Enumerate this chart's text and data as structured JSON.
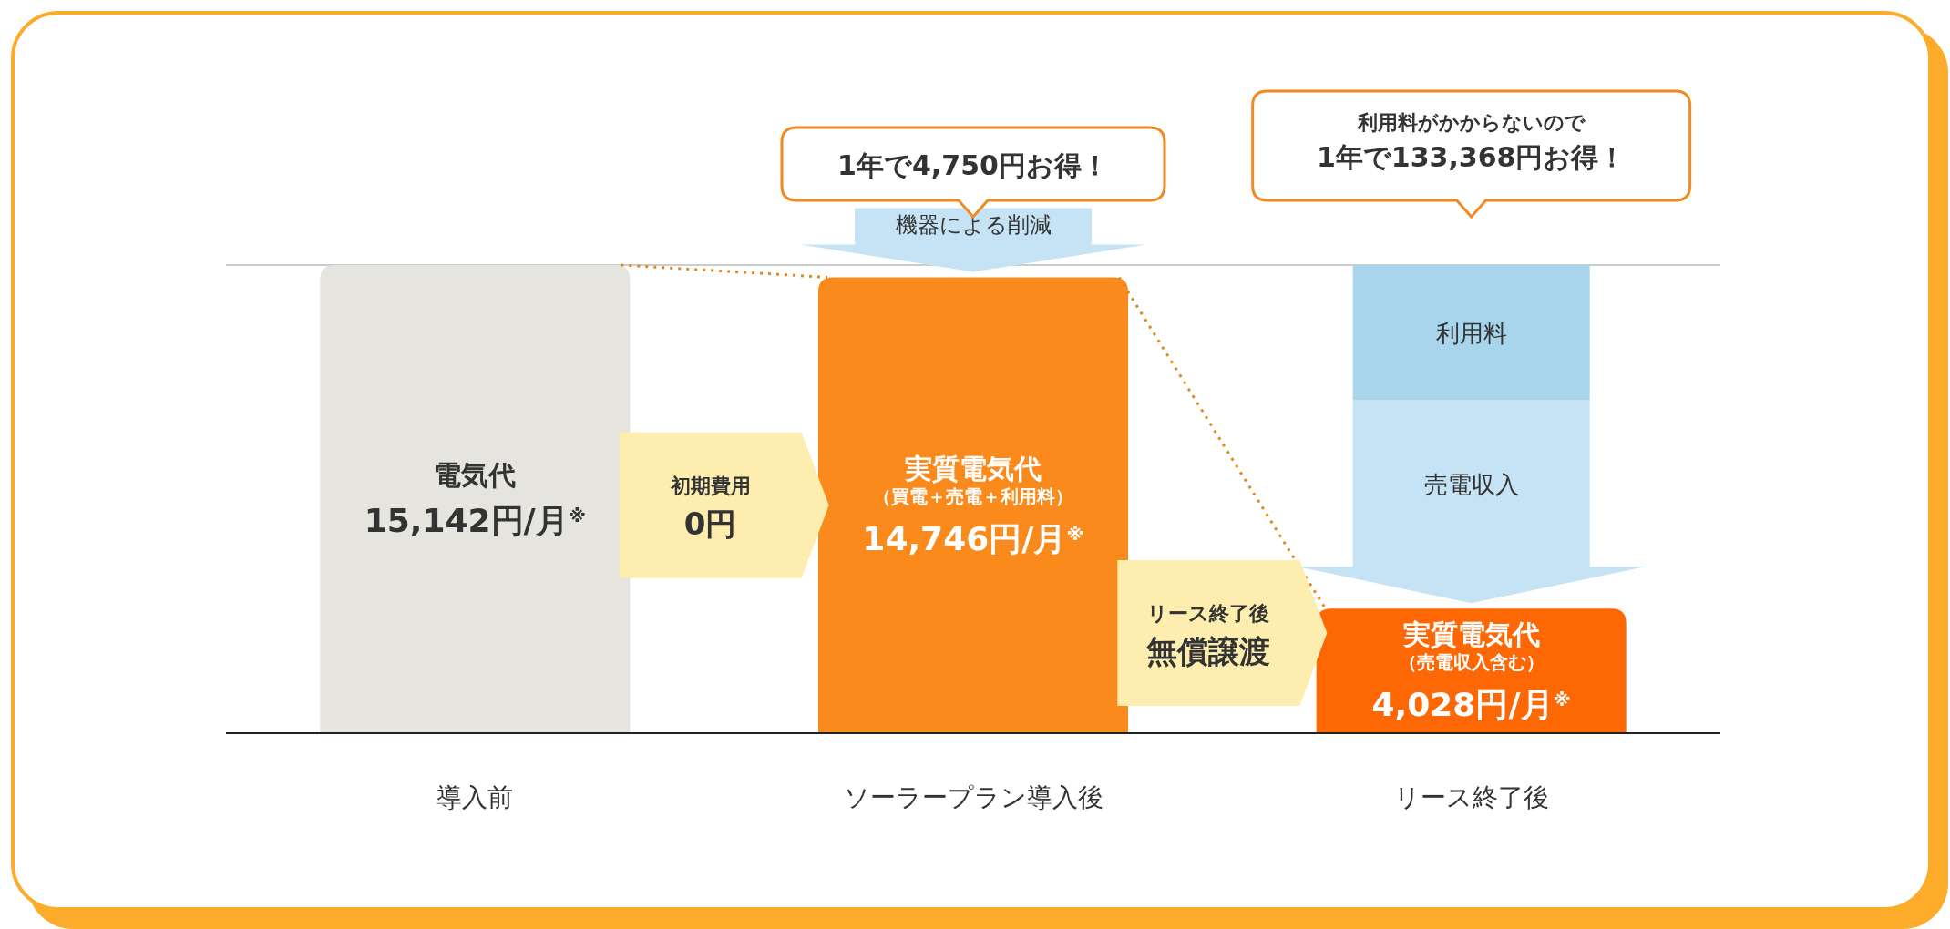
{
  "chart_data": {
    "type": "bar",
    "categories": [
      "導入前",
      "ソーラープラン導入後",
      "リース終了後"
    ],
    "values": [
      15142,
      14746,
      4028
    ],
    "colors": [
      "#e6e4de",
      "#fb8a1c",
      "#fe6804"
    ],
    "value_labels": [
      "15,142円/月$^{※}$",
      "14,746円/月$^{※}$",
      "4,028円/月$^{※}$"
    ],
    "ref_lines": [
      {
        "axis": "y",
        "value": 15142,
        "color": "#cccccc"
      }
    ],
    "annotations": [
      "電気代",
      "実質電気代",
      "（買電＋売電＋利用料）",
      "実質電気代",
      "（売電収入含む）",
      "初期費用",
      "0円",
      "リース終了後",
      "無償譲渡",
      "機器による削減",
      "利用料",
      "売電収入",
      "1年で4,750円お得！",
      "利用料がかからないので",
      "1年で133,368円お得！"
    ]
  }
}
